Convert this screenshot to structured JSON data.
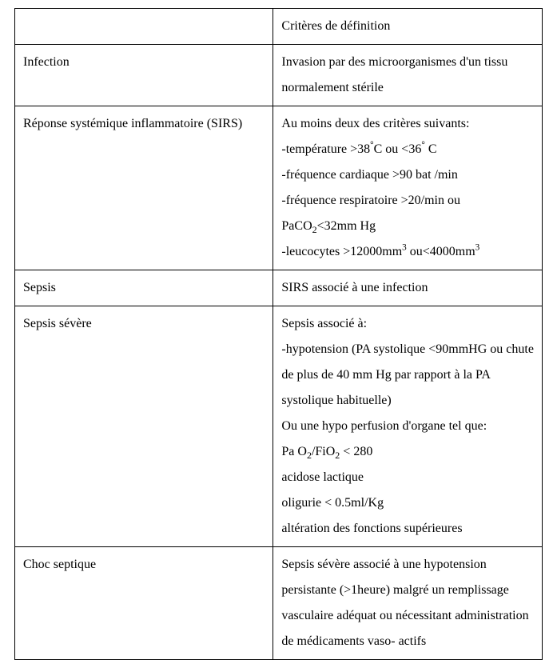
{
  "table": {
    "border_color": "#000000",
    "background_color": "#ffffff",
    "text_color": "#000000",
    "font_family": "Times New Roman",
    "font_size_pt": 12,
    "line_height": 2.0,
    "col_widths_pct": [
      49,
      51
    ],
    "header": {
      "left": "",
      "right": "Critères de définition"
    },
    "rows": [
      {
        "term": "Infection",
        "definition_html": "Invasion par des microorganismes d'un tissu normalement stérile"
      },
      {
        "term": "Réponse systémique inflammatoire (SIRS)",
        "definition_html": "Au moins deux des critères suivants:<br>-température &gt;38<sup>°</sup>C ou &lt;36<sup>°</sup> C<br>-fréquence cardiaque &gt;90 bat /min<br>-fréquence respiratoire &gt;20/min ou PaCO<sub>2</sub>&lt;32mm Hg<br>-leucocytes &gt;12000mm<sup>3</sup> ou&lt;4000mm<sup>3</sup>"
      },
      {
        "term": "Sepsis",
        "definition_html": "SIRS associé à une infection"
      },
      {
        "term": "Sepsis sévère",
        "definition_html": "Sepsis associé à:<br>-hypotension (PA systolique &lt;90mmHG ou chute de plus de 40 mm Hg par rapport à la PA systolique habituelle)<br>Ou une hypo perfusion d'organe tel que:<br>Pa O<sub>2</sub>/FiO<sub>2</sub> &lt; 280<br>acidose lactique<br>oligurie &lt; 0.5ml/Kg<br>altération des fonctions supérieures"
      },
      {
        "term": "Choc  septique",
        "definition_html": "Sepsis sévère associé à une hypotension persistante (&gt;1heure) malgré un remplissage vasculaire adéquat ou nécessitant administration de médicaments vaso- actifs"
      }
    ]
  }
}
